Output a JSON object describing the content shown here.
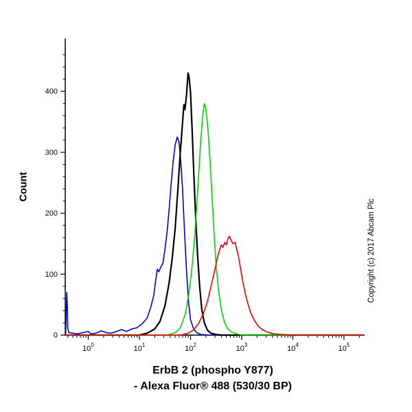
{
  "chart_data": {
    "type": "line",
    "chart_kind": "flow-cytometry-histogram-overlay",
    "title": "",
    "ylabel": "Count",
    "xlabel_line1": "ErbB 2 (phospho Y877)",
    "xlabel_line2": "- Alexa Fluor® 488 (530/30 BP)",
    "copyright": "Copyright (c) 2017 Abcam Plc",
    "x_scale": "log10",
    "xlim_log": [
      -0.45,
      5.35
    ],
    "ylim": [
      0,
      480
    ],
    "x_major_ticks_exponents": [
      0,
      1,
      2,
      3,
      4,
      5
    ],
    "y_major_ticks": [
      0,
      100,
      200,
      300,
      400
    ],
    "y_minor_step": 20,
    "axis_color": "#000000",
    "grid": false,
    "legend": "none",
    "series": [
      {
        "name": "blue",
        "color": "#0000cc",
        "width": 1.6,
        "points": [
          [
            -0.45,
            0
          ],
          [
            -0.44,
            3
          ],
          [
            -0.43,
            42
          ],
          [
            -0.42,
            70
          ],
          [
            -0.41,
            48
          ],
          [
            -0.4,
            12
          ],
          [
            -0.38,
            4
          ],
          [
            -0.3,
            3
          ],
          [
            -0.2,
            2
          ],
          [
            -0.1,
            4
          ],
          [
            0.0,
            6
          ],
          [
            0.05,
            2
          ],
          [
            0.15,
            3
          ],
          [
            0.25,
            7
          ],
          [
            0.35,
            4
          ],
          [
            0.45,
            3
          ],
          [
            0.55,
            6
          ],
          [
            0.65,
            9
          ],
          [
            0.75,
            6
          ],
          [
            0.85,
            10
          ],
          [
            0.95,
            12
          ],
          [
            1.05,
            18
          ],
          [
            1.15,
            28
          ],
          [
            1.22,
            45
          ],
          [
            1.28,
            65
          ],
          [
            1.32,
            90
          ],
          [
            1.35,
            108
          ],
          [
            1.38,
            104
          ],
          [
            1.42,
            112
          ],
          [
            1.46,
            118
          ],
          [
            1.5,
            140
          ],
          [
            1.54,
            168
          ],
          [
            1.58,
            205
          ],
          [
            1.62,
            248
          ],
          [
            1.66,
            285
          ],
          [
            1.7,
            312
          ],
          [
            1.74,
            325
          ],
          [
            1.77,
            318
          ],
          [
            1.8,
            295
          ],
          [
            1.84,
            245
          ],
          [
            1.88,
            175
          ],
          [
            1.92,
            108
          ],
          [
            1.96,
            55
          ],
          [
            2.0,
            25
          ],
          [
            2.06,
            10
          ],
          [
            2.12,
            4
          ],
          [
            2.2,
            1
          ],
          [
            2.35,
            0
          ],
          [
            5.35,
            0
          ]
        ]
      },
      {
        "name": "black",
        "color": "#000000",
        "width": 2.2,
        "points": [
          [
            -0.45,
            0
          ],
          [
            1.0,
            0
          ],
          [
            1.15,
            3
          ],
          [
            1.3,
            10
          ],
          [
            1.4,
            22
          ],
          [
            1.5,
            48
          ],
          [
            1.58,
            85
          ],
          [
            1.64,
            125
          ],
          [
            1.7,
            175
          ],
          [
            1.76,
            248
          ],
          [
            1.8,
            300
          ],
          [
            1.84,
            345
          ],
          [
            1.87,
            378
          ],
          [
            1.89,
            370
          ],
          [
            1.92,
            392
          ],
          [
            1.95,
            430
          ],
          [
            1.97,
            425
          ],
          [
            2.0,
            398
          ],
          [
            2.03,
            340
          ],
          [
            2.06,
            272
          ],
          [
            2.1,
            195
          ],
          [
            2.14,
            128
          ],
          [
            2.18,
            78
          ],
          [
            2.22,
            42
          ],
          [
            2.27,
            20
          ],
          [
            2.33,
            8
          ],
          [
            2.4,
            3
          ],
          [
            2.5,
            1
          ],
          [
            2.6,
            0
          ],
          [
            5.35,
            0
          ]
        ]
      },
      {
        "name": "green",
        "color": "#00d400",
        "width": 1.6,
        "points": [
          [
            -0.45,
            0
          ],
          [
            1.55,
            0
          ],
          [
            1.7,
            4
          ],
          [
            1.8,
            12
          ],
          [
            1.9,
            35
          ],
          [
            1.97,
            70
          ],
          [
            2.02,
            105
          ],
          [
            2.07,
            150
          ],
          [
            2.12,
            210
          ],
          [
            2.16,
            265
          ],
          [
            2.2,
            320
          ],
          [
            2.24,
            362
          ],
          [
            2.27,
            380
          ],
          [
            2.3,
            372
          ],
          [
            2.34,
            338
          ],
          [
            2.38,
            288
          ],
          [
            2.42,
            228
          ],
          [
            2.46,
            168
          ],
          [
            2.5,
            115
          ],
          [
            2.55,
            72
          ],
          [
            2.6,
            42
          ],
          [
            2.66,
            22
          ],
          [
            2.72,
            11
          ],
          [
            2.8,
            5
          ],
          [
            2.9,
            2
          ],
          [
            3.0,
            0
          ],
          [
            5.35,
            0
          ]
        ]
      },
      {
        "name": "red",
        "color": "#ee0000",
        "width": 1.6,
        "points": [
          [
            -0.45,
            0
          ],
          [
            1.8,
            0
          ],
          [
            1.95,
            3
          ],
          [
            2.05,
            8
          ],
          [
            2.15,
            18
          ],
          [
            2.25,
            35
          ],
          [
            2.33,
            55
          ],
          [
            2.4,
            80
          ],
          [
            2.47,
            105
          ],
          [
            2.52,
            125
          ],
          [
            2.56,
            138
          ],
          [
            2.6,
            148
          ],
          [
            2.63,
            144
          ],
          [
            2.67,
            152
          ],
          [
            2.7,
            148
          ],
          [
            2.73,
            158
          ],
          [
            2.76,
            162
          ],
          [
            2.79,
            156
          ],
          [
            2.83,
            150
          ],
          [
            2.87,
            152
          ],
          [
            2.9,
            142
          ],
          [
            2.94,
            128
          ],
          [
            2.98,
            108
          ],
          [
            3.02,
            88
          ],
          [
            3.07,
            68
          ],
          [
            3.12,
            52
          ],
          [
            3.18,
            36
          ],
          [
            3.25,
            24
          ],
          [
            3.32,
            15
          ],
          [
            3.4,
            9
          ],
          [
            3.5,
            5
          ],
          [
            3.62,
            2
          ],
          [
            3.8,
            1
          ],
          [
            4.0,
            0
          ],
          [
            5.35,
            0
          ]
        ]
      }
    ]
  }
}
